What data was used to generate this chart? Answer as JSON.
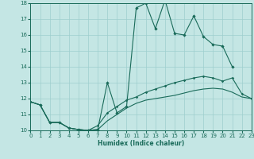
{
  "bg_color": "#c4e6e4",
  "grid_color": "#9ecece",
  "line_color": "#1a6b5a",
  "xlabel": "Humidex (Indice chaleur)",
  "xlim": [
    0,
    23
  ],
  "ylim": [
    10,
    18
  ],
  "yticks": [
    10,
    11,
    12,
    13,
    14,
    15,
    16,
    17,
    18
  ],
  "xticks": [
    0,
    1,
    2,
    3,
    4,
    5,
    6,
    7,
    8,
    9,
    10,
    11,
    12,
    13,
    14,
    15,
    16,
    17,
    18,
    19,
    20,
    21,
    22,
    23
  ],
  "line1_x": [
    0,
    1,
    2,
    3,
    4,
    5,
    6,
    7,
    8,
    9,
    10,
    11,
    12,
    13,
    14,
    15,
    16,
    17,
    18,
    19,
    20,
    21
  ],
  "line1_y": [
    11.8,
    11.6,
    10.5,
    10.5,
    10.15,
    10.05,
    10.0,
    10.05,
    13.0,
    11.1,
    11.5,
    17.7,
    18.0,
    16.4,
    18.2,
    16.1,
    16.0,
    17.2,
    15.9,
    15.4,
    15.3,
    14.0
  ],
  "line2_x": [
    0,
    1,
    2,
    3,
    4,
    5,
    6,
    7,
    8,
    9,
    10,
    11,
    12,
    13,
    14,
    15,
    16,
    17,
    18,
    19,
    20,
    21,
    22,
    23
  ],
  "line2_y": [
    11.8,
    11.6,
    10.5,
    10.5,
    10.15,
    10.05,
    10.0,
    10.3,
    11.1,
    11.5,
    11.9,
    12.1,
    12.4,
    12.6,
    12.8,
    13.0,
    13.15,
    13.3,
    13.4,
    13.3,
    13.1,
    13.3,
    12.3,
    12.0
  ],
  "line3_x": [
    0,
    1,
    2,
    3,
    4,
    5,
    6,
    7,
    8,
    9,
    10,
    11,
    12,
    13,
    14,
    15,
    16,
    17,
    18,
    19,
    20,
    21,
    22,
    23
  ],
  "line3_y": [
    11.8,
    11.6,
    10.5,
    10.5,
    10.15,
    10.05,
    10.0,
    10.05,
    10.6,
    11.0,
    11.4,
    11.7,
    11.9,
    12.0,
    12.1,
    12.2,
    12.35,
    12.5,
    12.6,
    12.65,
    12.6,
    12.4,
    12.1,
    12.0
  ]
}
